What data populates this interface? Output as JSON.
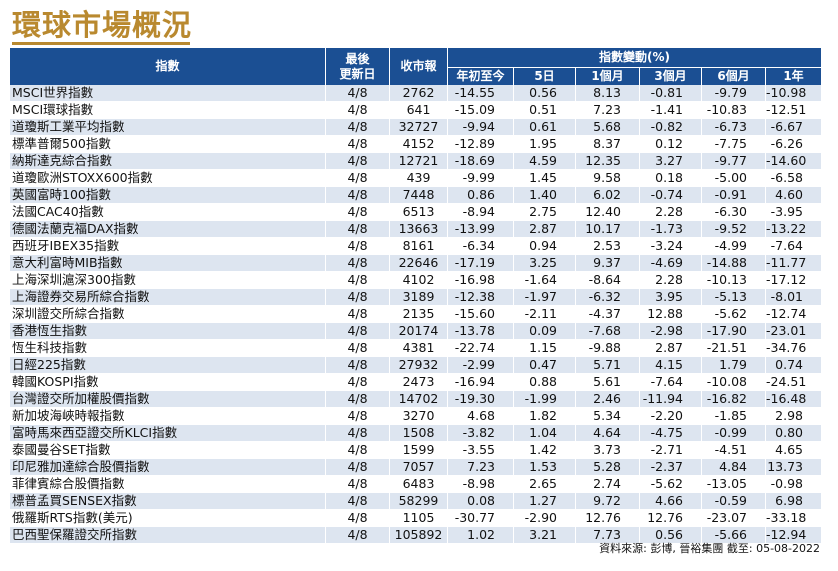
{
  "title": "環球市場概況",
  "headers": {
    "index": "指數",
    "last_update_line1": "最後",
    "last_update_line2": "更新日",
    "close": "收市報",
    "change_group": "指數變動(%)",
    "periods": [
      "年初至今",
      "5日",
      "1個月",
      "3個月",
      "6個月",
      "1年"
    ]
  },
  "rows": [
    {
      "name": "MSCI世界指數",
      "date": "4/8",
      "close": "2762",
      "ytd": "-14.55",
      "d5": "0.56",
      "m1": "8.13",
      "m3": "-0.81",
      "m6": "-9.79",
      "y1": "-10.98"
    },
    {
      "name": "MSCI環球指數",
      "date": "4/8",
      "close": "641",
      "ytd": "-15.09",
      "d5": "0.51",
      "m1": "7.23",
      "m3": "-1.41",
      "m6": "-10.83",
      "y1": "-12.51"
    },
    {
      "name": "道瓊斯工業平均指數",
      "date": "4/8",
      "close": "32727",
      "ytd": "-9.94",
      "d5": "0.61",
      "m1": "5.68",
      "m3": "-0.82",
      "m6": "-6.73",
      "y1": "-6.67"
    },
    {
      "name": "標準普爾500指數",
      "date": "4/8",
      "close": "4152",
      "ytd": "-12.89",
      "d5": "1.95",
      "m1": "8.37",
      "m3": "0.12",
      "m6": "-7.75",
      "y1": "-6.26"
    },
    {
      "name": "納斯達克綜合指數",
      "date": "4/8",
      "close": "12721",
      "ytd": "-18.69",
      "d5": "4.59",
      "m1": "12.35",
      "m3": "3.27",
      "m6": "-9.77",
      "y1": "-14.60"
    },
    {
      "name": "道瓊歐洲STOXX600指數",
      "date": "4/8",
      "close": "439",
      "ytd": "-9.99",
      "d5": "1.45",
      "m1": "9.58",
      "m3": "0.18",
      "m6": "-5.00",
      "y1": "-6.58"
    },
    {
      "name": "英國富時100指數",
      "date": "4/8",
      "close": "7448",
      "ytd": "0.86",
      "d5": "1.40",
      "m1": "6.02",
      "m3": "-0.74",
      "m6": "-0.91",
      "y1": "4.60"
    },
    {
      "name": "法國CAC40指數",
      "date": "4/8",
      "close": "6513",
      "ytd": "-8.94",
      "d5": "2.75",
      "m1": "12.40",
      "m3": "2.28",
      "m6": "-6.30",
      "y1": "-3.95"
    },
    {
      "name": "德國法蘭克福DAX指數",
      "date": "4/8",
      "close": "13663",
      "ytd": "-13.99",
      "d5": "2.87",
      "m1": "10.17",
      "m3": "-1.73",
      "m6": "-9.52",
      "y1": "-13.22"
    },
    {
      "name": "西班牙IBEX35指數",
      "date": "4/8",
      "close": "8161",
      "ytd": "-6.34",
      "d5": "0.94",
      "m1": "2.53",
      "m3": "-3.24",
      "m6": "-4.99",
      "y1": "-7.64"
    },
    {
      "name": "意大利富時MIB指數",
      "date": "4/8",
      "close": "22646",
      "ytd": "-17.19",
      "d5": "3.25",
      "m1": "9.37",
      "m3": "-4.69",
      "m6": "-14.88",
      "y1": "-11.77"
    },
    {
      "name": "上海深圳滬深300指數",
      "date": "4/8",
      "close": "4102",
      "ytd": "-16.98",
      "d5": "-1.64",
      "m1": "-8.64",
      "m3": "2.28",
      "m6": "-10.13",
      "y1": "-17.12"
    },
    {
      "name": "上海證券交易所綜合指數",
      "date": "4/8",
      "close": "3189",
      "ytd": "-12.38",
      "d5": "-1.97",
      "m1": "-6.32",
      "m3": "3.95",
      "m6": "-5.13",
      "y1": "-8.01"
    },
    {
      "name": "深圳證交所綜合指數",
      "date": "4/8",
      "close": "2135",
      "ytd": "-15.60",
      "d5": "-2.11",
      "m1": "-4.37",
      "m3": "12.88",
      "m6": "-5.62",
      "y1": "-12.74"
    },
    {
      "name": "香港恆生指數",
      "date": "4/8",
      "close": "20174",
      "ytd": "-13.78",
      "d5": "0.09",
      "m1": "-7.68",
      "m3": "-2.98",
      "m6": "-17.90",
      "y1": "-23.01"
    },
    {
      "name": "恆生科技指數",
      "date": "4/8",
      "close": "4381",
      "ytd": "-22.74",
      "d5": "1.15",
      "m1": "-9.88",
      "m3": "2.87",
      "m6": "-21.51",
      "y1": "-34.76"
    },
    {
      "name": "日經225指數",
      "date": "4/8",
      "close": "27932",
      "ytd": "-2.99",
      "d5": "0.47",
      "m1": "5.71",
      "m3": "4.15",
      "m6": "1.79",
      "y1": "0.74"
    },
    {
      "name": "韓國KOSPI指數",
      "date": "4/8",
      "close": "2473",
      "ytd": "-16.94",
      "d5": "0.88",
      "m1": "5.61",
      "m3": "-7.64",
      "m6": "-10.08",
      "y1": "-24.51"
    },
    {
      "name": "台灣證交所加權股價指數",
      "date": "4/8",
      "close": "14702",
      "ytd": "-19.30",
      "d5": "-1.99",
      "m1": "2.46",
      "m3": "-11.94",
      "m6": "-16.82",
      "y1": "-16.48"
    },
    {
      "name": "新加坡海峽時報指數",
      "date": "4/8",
      "close": "3270",
      "ytd": "4.68",
      "d5": "1.82",
      "m1": "5.34",
      "m3": "-2.20",
      "m6": "-1.85",
      "y1": "2.98"
    },
    {
      "name": "富時馬來西亞證交所KLCI指數",
      "date": "4/8",
      "close": "1508",
      "ytd": "-3.82",
      "d5": "1.04",
      "m1": "4.64",
      "m3": "-4.75",
      "m6": "-0.99",
      "y1": "0.80"
    },
    {
      "name": "泰國曼谷SET指數",
      "date": "4/8",
      "close": "1599",
      "ytd": "-3.55",
      "d5": "1.42",
      "m1": "3.73",
      "m3": "-2.71",
      "m6": "-4.51",
      "y1": "4.65"
    },
    {
      "name": "印尼雅加達綜合股價指數",
      "date": "4/8",
      "close": "7057",
      "ytd": "7.23",
      "d5": "1.53",
      "m1": "5.28",
      "m3": "-2.37",
      "m6": "4.84",
      "y1": "13.73"
    },
    {
      "name": "菲律賓綜合股價指數",
      "date": "4/8",
      "close": "6483",
      "ytd": "-8.98",
      "d5": "2.65",
      "m1": "2.74",
      "m3": "-5.62",
      "m6": "-13.05",
      "y1": "-0.98"
    },
    {
      "name": "標普孟買SENSEX指數",
      "date": "4/8",
      "close": "58299",
      "ytd": "0.08",
      "d5": "1.27",
      "m1": "9.72",
      "m3": "4.66",
      "m6": "-0.59",
      "y1": "6.98"
    },
    {
      "name": "俄羅斯RTS指數(美元)",
      "date": "4/8",
      "close": "1105",
      "ytd": "-30.77",
      "d5": "-2.90",
      "m1": "12.76",
      "m3": "12.76",
      "m6": "-23.07",
      "y1": "-33.18"
    },
    {
      "name": "巴西聖保羅證交所指數",
      "date": "4/8",
      "close": "105892",
      "ytd": "1.02",
      "d5": "3.21",
      "m1": "7.73",
      "m3": "0.56",
      "m6": "-5.66",
      "y1": "-12.94"
    }
  ],
  "source_note": "資料來源: 彭博, 晉裕集團 截至: 05-08-2022",
  "colors": {
    "title": "#b9892f",
    "header_bg": "#1b4f93",
    "stripe": "#dde5f0"
  }
}
